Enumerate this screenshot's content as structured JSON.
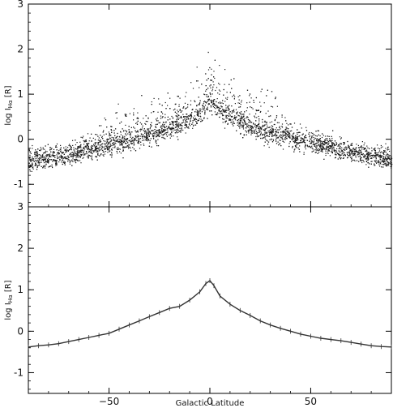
{
  "chart_data": [
    {
      "type": "scatter",
      "panel": "top",
      "xlim": [
        -90,
        90
      ],
      "ylim": [
        -1.5,
        3
      ],
      "xticks": [
        -50,
        0,
        50
      ],
      "yticks": [
        -1,
        0,
        1,
        2,
        3
      ],
      "ylabel": "log I_Hα [R]",
      "ylabel_main": "log I",
      "ylabel_sub": "Hα",
      "ylabel_unit": " [R]",
      "point_color": "#1a1a1a",
      "envelope": {
        "x": [
          -90,
          -80,
          -70,
          -60,
          -50,
          -40,
          -30,
          -20,
          -10,
          -5,
          0,
          5,
          10,
          20,
          30,
          40,
          50,
          60,
          70,
          80,
          90
        ],
        "y_center": [
          -0.45,
          -0.4,
          -0.33,
          -0.22,
          -0.12,
          0.0,
          0.1,
          0.25,
          0.45,
          0.62,
          0.85,
          0.68,
          0.5,
          0.3,
          0.15,
          0.05,
          -0.05,
          -0.15,
          -0.25,
          -0.35,
          -0.42
        ],
        "y_upper": [
          -0.2,
          -0.15,
          0.0,
          0.3,
          0.8,
          1.0,
          1.1,
          1.4,
          1.7,
          2.0,
          2.3,
          2.0,
          1.6,
          1.3,
          1.7,
          0.6,
          0.35,
          0.2,
          -0.05,
          -0.15,
          -0.25
        ]
      }
    },
    {
      "type": "line",
      "panel": "bottom",
      "xlim": [
        -90,
        90
      ],
      "ylim": [
        -1.5,
        3
      ],
      "xticks": [
        -50,
        0,
        50
      ],
      "yticks": [
        -1,
        0,
        1,
        2,
        3
      ],
      "ylabel": "log I_Hα [R]",
      "ylabel_main": "log I",
      "ylabel_sub": "Hα",
      "ylabel_unit": " [R]",
      "xlabel": "Galactic Latitude",
      "line_color": "#333333",
      "x": [
        -90,
        -85,
        -80,
        -75,
        -70,
        -65,
        -60,
        -55,
        -50,
        -45,
        -40,
        -35,
        -30,
        -25,
        -20,
        -15,
        -10,
        -5,
        -2,
        0,
        2,
        5,
        10,
        15,
        20,
        25,
        30,
        35,
        40,
        45,
        50,
        55,
        60,
        65,
        70,
        75,
        80,
        85,
        90
      ],
      "y": [
        -0.38,
        -0.35,
        -0.33,
        -0.3,
        -0.25,
        -0.2,
        -0.15,
        -0.1,
        -0.05,
        0.05,
        0.15,
        0.25,
        0.35,
        0.45,
        0.55,
        0.6,
        0.75,
        0.95,
        1.15,
        1.22,
        1.1,
        0.85,
        0.65,
        0.5,
        0.38,
        0.25,
        0.15,
        0.07,
        0.0,
        -0.07,
        -0.12,
        -0.17,
        -0.2,
        -0.23,
        -0.27,
        -0.31,
        -0.35,
        -0.37,
        -0.38
      ]
    }
  ]
}
